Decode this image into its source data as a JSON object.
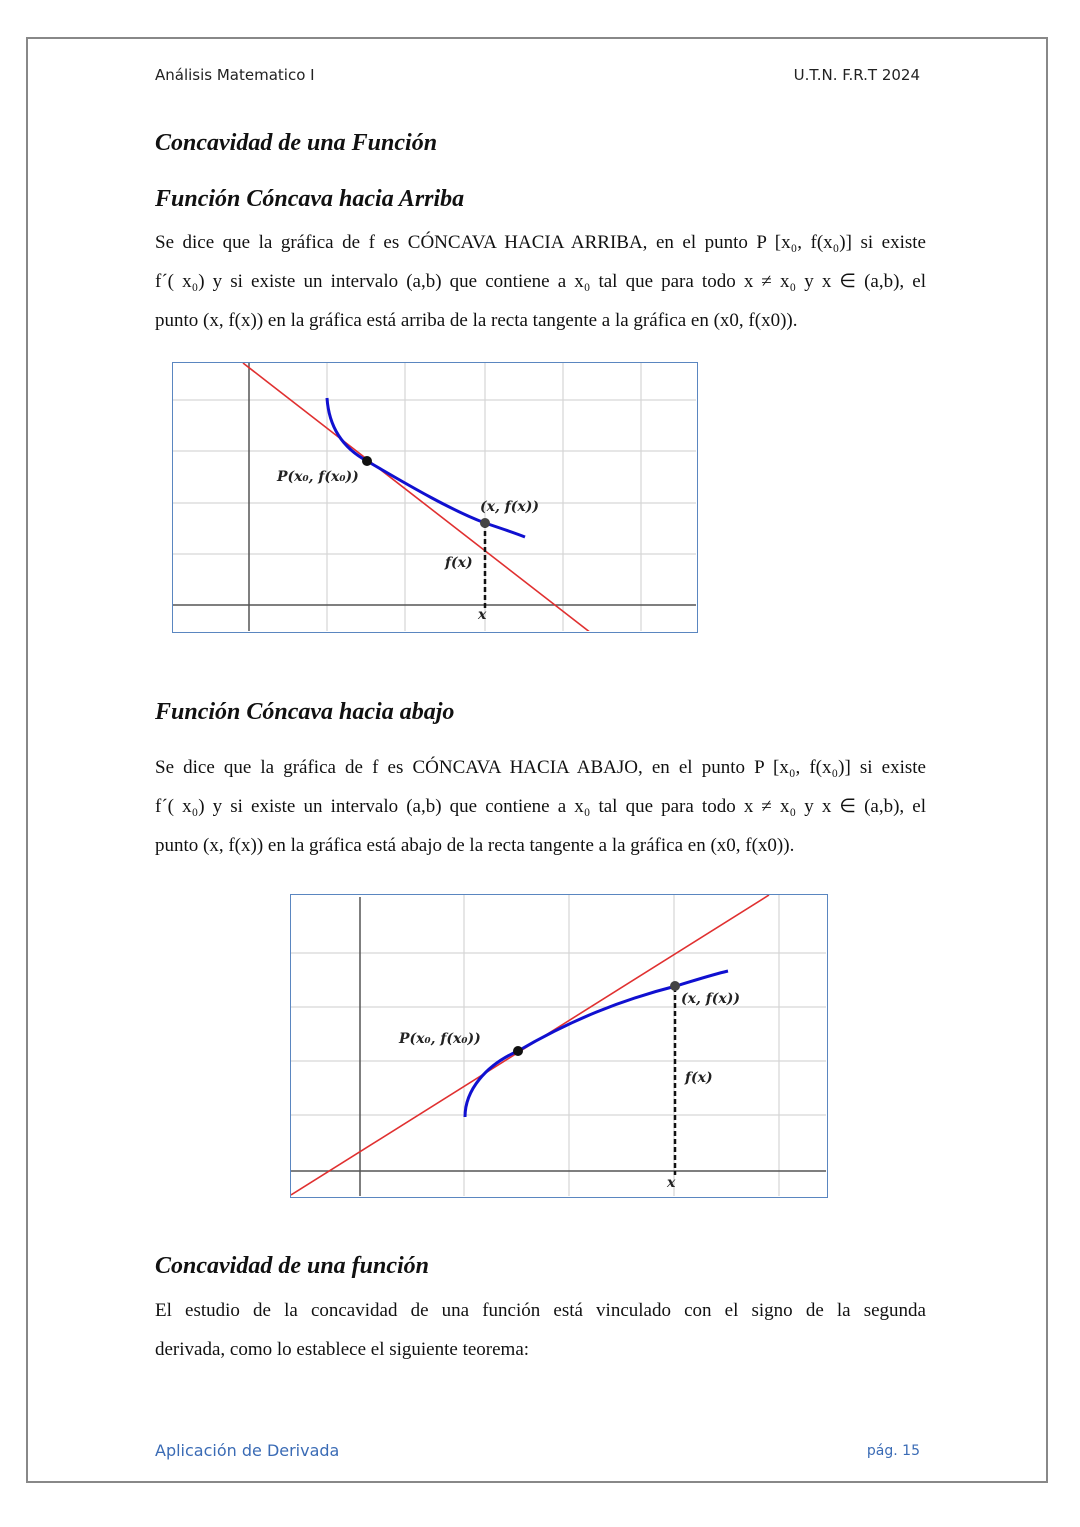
{
  "header": {
    "left": "Análisis Matematico I",
    "right": "U.T.N. F.R.T 2024"
  },
  "title": "Concavidad de una Función",
  "section1": {
    "heading": "Función Cóncava hacia Arriba",
    "lines": [
      "Se dice que la gráfica de f es CÓNCAVA HACIA ARRIBA, en el punto P [x₀, f(x₀)] si existe",
      "f´( x₀) y si existe un intervalo (a,b) que contiene a x₀ tal que para todo x ≠ x₀  y  x ∈ (a,b), el",
      "punto  (x, f(x)) en la gráfica está arriba de la recta tangente a la gráfica en (x0, f(x0))."
    ],
    "figure": {
      "p_label": "P(x₀, f(x₀))",
      "point_label": "(x, f(x))",
      "fx_label": "f(x)",
      "x_label": "x"
    }
  },
  "section2": {
    "heading": "Función Cóncava hacia abajo",
    "lines": [
      "Se dice que la gráfica de f es CÓNCAVA HACIA ABAJO, en el punto P [x₀, f(x₀)] si existe",
      "f´( x₀) y si existe un intervalo (a,b) que contiene a x₀ tal que para todo x ≠ x₀  y  x ∈ (a,b), el",
      "punto  (x, f(x)) en la gráfica está abajo de la recta tangente a la gráfica en (x0, f(x0))."
    ],
    "figure": {
      "p_label": "P(x₀, f(x₀))",
      "point_label": "(x, f(x))",
      "fx_label": "f(x)",
      "x_label": "x"
    }
  },
  "section3": {
    "heading": "Concavidad de una función",
    "lines": [
      "El estudio de la concavidad de una función está vinculado con el signo de la segunda",
      "derivada, como lo establece el siguiente teorema:"
    ]
  },
  "footer": {
    "left": "Aplicación de Derivada",
    "right": "pág. 15"
  },
  "colors": {
    "tangent": "#e03030",
    "curve": "#1010d0",
    "footer": "#3a6bb5"
  }
}
